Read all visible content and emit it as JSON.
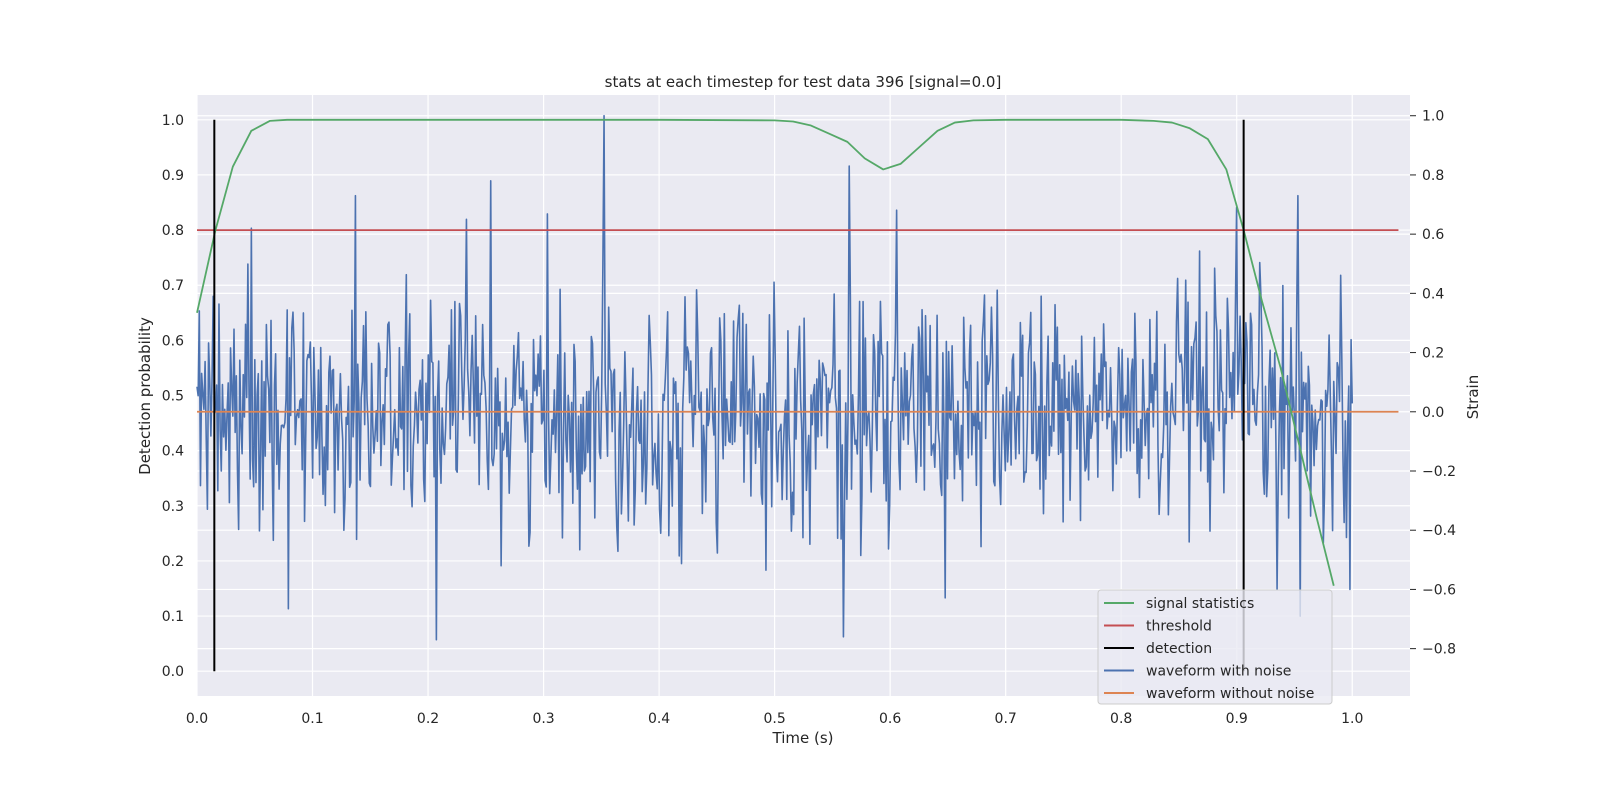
{
  "chart_data": {
    "type": "line",
    "title": "stats at each timestep for test data 396 [signal=0.0]",
    "xlabel": "Time (s)",
    "ylabel_left": "Detection probability",
    "ylabel_right": "Strain",
    "xlim": [
      0.0,
      1.05
    ],
    "ylim_left": [
      -0.045,
      1.045
    ],
    "ylim_right": [
      -0.96,
      1.07
    ],
    "x_ticks": [
      "0.0",
      "0.1",
      "0.2",
      "0.3",
      "0.4",
      "0.5",
      "0.6",
      "0.7",
      "0.8",
      "0.9",
      "1.0"
    ],
    "y_ticks_left": [
      "0.0",
      "0.1",
      "0.2",
      "0.3",
      "0.4",
      "0.5",
      "0.6",
      "0.7",
      "0.8",
      "0.9",
      "1.0"
    ],
    "y_ticks_right": [
      "−0.8",
      "−0.6",
      "−0.4",
      "−0.2",
      "0.0",
      "0.2",
      "0.4",
      "0.6",
      "0.8",
      "1.0"
    ],
    "grid": true,
    "legend_position": "lower-right",
    "series": [
      {
        "name": "signal statistics",
        "axis": "left",
        "color": "#55a868",
        "x": [
          0.0,
          0.016,
          0.031,
          0.047,
          0.063,
          0.078,
          0.094,
          0.11,
          0.2,
          0.3,
          0.4,
          0.5,
          0.516,
          0.531,
          0.547,
          0.563,
          0.578,
          0.594,
          0.609,
          0.625,
          0.641,
          0.656,
          0.672,
          0.7,
          0.8,
          0.828,
          0.844,
          0.859,
          0.875,
          0.891,
          0.906,
          0.922,
          0.938,
          0.953,
          0.969,
          0.984
        ],
        "y": [
          0.65,
          0.8,
          0.915,
          0.98,
          0.998,
          1.0,
          1.0,
          1.0,
          1.0,
          1.0,
          1.0,
          0.999,
          0.997,
          0.99,
          0.975,
          0.96,
          0.93,
          0.91,
          0.92,
          0.95,
          0.98,
          0.995,
          0.999,
          1.0,
          1.0,
          0.998,
          0.995,
          0.985,
          0.965,
          0.91,
          0.8,
          0.67,
          0.55,
          0.42,
          0.28,
          0.155
        ]
      },
      {
        "name": "threshold",
        "axis": "left",
        "color": "#c44e52",
        "x": [
          0.0,
          1.04
        ],
        "y": [
          0.8,
          0.8
        ]
      },
      {
        "name": "detection",
        "axis": "left",
        "color": "#000000",
        "segments": [
          {
            "x": 0.015,
            "y": [
              0.0,
              1.0
            ]
          },
          {
            "x": 0.906,
            "y": [
              0.0,
              1.0
            ]
          }
        ]
      },
      {
        "name": "waveform with noise",
        "axis": "right",
        "color": "#4c72b0",
        "x_start": 0.0,
        "x_end": 1.0,
        "samples": 1000,
        "mean": 0.0,
        "std": 0.2,
        "peaks": [
          {
            "x": 0.014,
            "y": 0.39
          },
          {
            "x": 0.047,
            "y": 0.62
          },
          {
            "x": 0.137,
            "y": 0.73
          },
          {
            "x": 0.254,
            "y": 0.78
          },
          {
            "x": 0.352,
            "y": 1.0
          },
          {
            "x": 0.565,
            "y": 0.83
          },
          {
            "x": 0.9,
            "y": 0.69
          },
          {
            "x": 0.953,
            "y": 0.73
          },
          {
            "x": 0.207,
            "y": -0.77
          },
          {
            "x": 0.56,
            "y": -0.76
          },
          {
            "x": 0.955,
            "y": -0.69
          },
          {
            "x": 0.998,
            "y": -0.6
          }
        ]
      },
      {
        "name": "waveform without noise",
        "axis": "right",
        "color": "#dd8452",
        "x": [
          0.0,
          1.04
        ],
        "y": [
          0.0,
          0.0
        ]
      }
    ]
  },
  "legend": {
    "items": [
      {
        "label": "signal statistics",
        "color": "#55a868"
      },
      {
        "label": "threshold",
        "color": "#c44e52"
      },
      {
        "label": "detection",
        "color": "#000000"
      },
      {
        "label": "waveform with noise",
        "color": "#4c72b0"
      },
      {
        "label": "waveform without noise",
        "color": "#dd8452"
      }
    ]
  }
}
